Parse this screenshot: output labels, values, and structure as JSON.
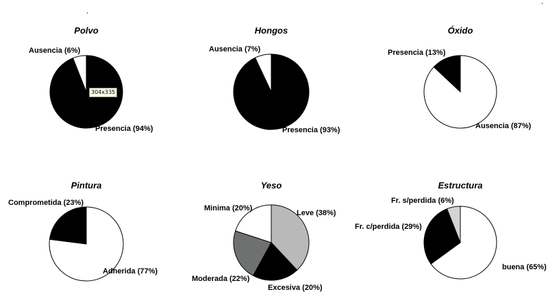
{
  "colors": {
    "black": "#000000",
    "white": "#ffffff",
    "dark_gray": "#6f7070",
    "light_gray": "#b9b9b9",
    "very_light_gray": "#d4d4d4",
    "outline": "#000000"
  },
  "overlay": {
    "dimension_tooltip": "304x335"
  },
  "chart_data": [
    {
      "type": "pie",
      "title": "Polvo",
      "slices": [
        {
          "label": "Presencia (94%)",
          "value": 94,
          "color": "#000000"
        },
        {
          "label": "Ausencia (6%)",
          "value": 6,
          "color": "#ffffff"
        }
      ]
    },
    {
      "type": "pie",
      "title": "Hongos",
      "slices": [
        {
          "label": "Presencia (93%)",
          "value": 93,
          "color": "#000000"
        },
        {
          "label": "Ausencia (7%)",
          "value": 7,
          "color": "#ffffff"
        }
      ]
    },
    {
      "type": "pie",
      "title": "Óxido",
      "slices": [
        {
          "label": "Ausencia (87%)",
          "value": 87,
          "color": "#ffffff"
        },
        {
          "label": "Presencia (13%)",
          "value": 13,
          "color": "#000000"
        }
      ]
    },
    {
      "type": "pie",
      "title": "Pintura",
      "slices": [
        {
          "label": "Adherida (77%)",
          "value": 77,
          "color": "#ffffff"
        },
        {
          "label": "Comprometida (23%)",
          "value": 23,
          "color": "#000000"
        }
      ]
    },
    {
      "type": "pie",
      "title": "Yeso",
      "slices": [
        {
          "label": "Leve (38%)",
          "value": 38,
          "color": "#b9b9b9"
        },
        {
          "label": "Excesiva (20%)",
          "value": 20,
          "color": "#000000"
        },
        {
          "label": "Moderada (22%)",
          "value": 22,
          "color": "#6f7070"
        },
        {
          "label": "Minima (20%)",
          "value": 20,
          "color": "#ffffff"
        }
      ]
    },
    {
      "type": "pie",
      "title": "Estructura",
      "slices": [
        {
          "label": "buena (65%)",
          "value": 65,
          "color": "#ffffff"
        },
        {
          "label": "Fr. c/perdida (29%)",
          "value": 29,
          "color": "#000000"
        },
        {
          "label": "Fr. s/perdida (6%)",
          "value": 6,
          "color": "#d4d4d4"
        }
      ]
    }
  ]
}
